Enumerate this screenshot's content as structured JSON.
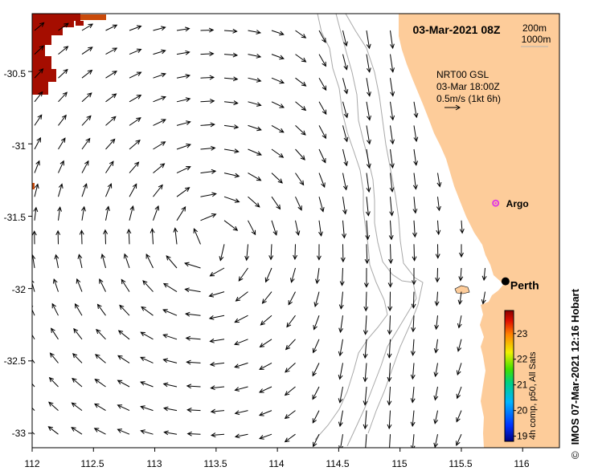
{
  "header": {
    "datetime": "03-Mar-2021 08Z",
    "contours": [
      "200m",
      "1000m"
    ]
  },
  "legend": {
    "line1": "NRT00 GSL",
    "line2": "03-Mar 18:00Z",
    "line3": "0.5m/s (1kt 6h)"
  },
  "places": [
    {
      "name": "Argo",
      "lon": 115.78,
      "lat": -31.41
    },
    {
      "name": "Perth",
      "lon": 115.86,
      "lat": -31.95
    }
  ],
  "axes": {
    "x_ticks": [
      "112",
      "112.5",
      "113",
      "113.5",
      "114",
      "114.5",
      "115",
      "115.5",
      "116"
    ],
    "y_ticks": [
      "-30.5",
      "-31",
      "-31.5",
      "-32",
      "-32.5",
      "-33"
    ],
    "lon_range": [
      112,
      116.3
    ],
    "lat_range": [
      -33.1,
      -30.1
    ]
  },
  "colorbar": {
    "ticks": [
      "19",
      "20",
      "21",
      "22",
      "23"
    ],
    "range": [
      18.8,
      23.9
    ],
    "label": "4h comp, p50, All Sats"
  },
  "credit": "IMOS 07-Mar-2021 12:16 Hobart",
  "copyright": "©",
  "colors": {
    "land": "#fdcc9a",
    "sst_hot": "#a50d00",
    "sst_warm": "#c94a0a",
    "isobath": "#a9a9a9",
    "argo": "#e03ce0"
  }
}
